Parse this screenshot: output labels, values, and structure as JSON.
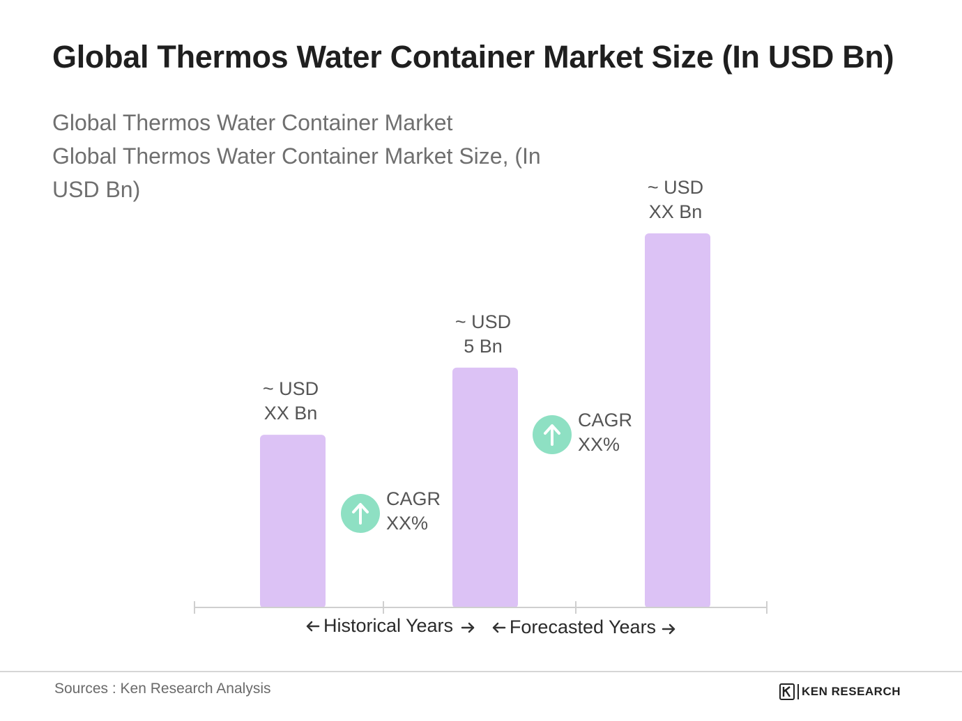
{
  "header": {
    "title": "Global Thermos Water Container Market Size (In USD Bn)",
    "subtitle_lines": [
      "Global Thermos Water Container Market",
      "Global Thermos Water Container Market Size, (In",
      "USD Bn)"
    ]
  },
  "chart_data": {
    "type": "bar",
    "title": "Global Thermos Water Container Market Size (In USD Bn)",
    "unit": "USD Bn",
    "categories": [
      "",
      "",
      ""
    ],
    "values": [
      3.6,
      5,
      7.8
    ],
    "value_labels": [
      [
        "~  USD",
        "XX Bn"
      ],
      [
        "~  USD",
        "5 Bn"
      ],
      [
        "~ USD",
        "XX Bn"
      ]
    ],
    "cagr_callouts": [
      {
        "between": [
          0,
          1
        ],
        "label": [
          "CAGR",
          "XX%"
        ]
      },
      {
        "between": [
          1,
          2
        ],
        "label": [
          "CAGR",
          "XX%"
        ]
      }
    ],
    "periods": [
      {
        "label": "Historical Years"
      },
      {
        "label": "Forecasted Years"
      }
    ],
    "grid": false,
    "legend": "none",
    "colors": {
      "bar": "#dcc2f5",
      "cagr_circle": "#8ee0c3",
      "axis": "#cfcfcf",
      "arrow": "#333333"
    }
  },
  "footer": {
    "source": "Sources : Ken Research Analysis",
    "brand": "KEN RESEARCH",
    "brand_icon": "ken-research-logo-icon"
  }
}
